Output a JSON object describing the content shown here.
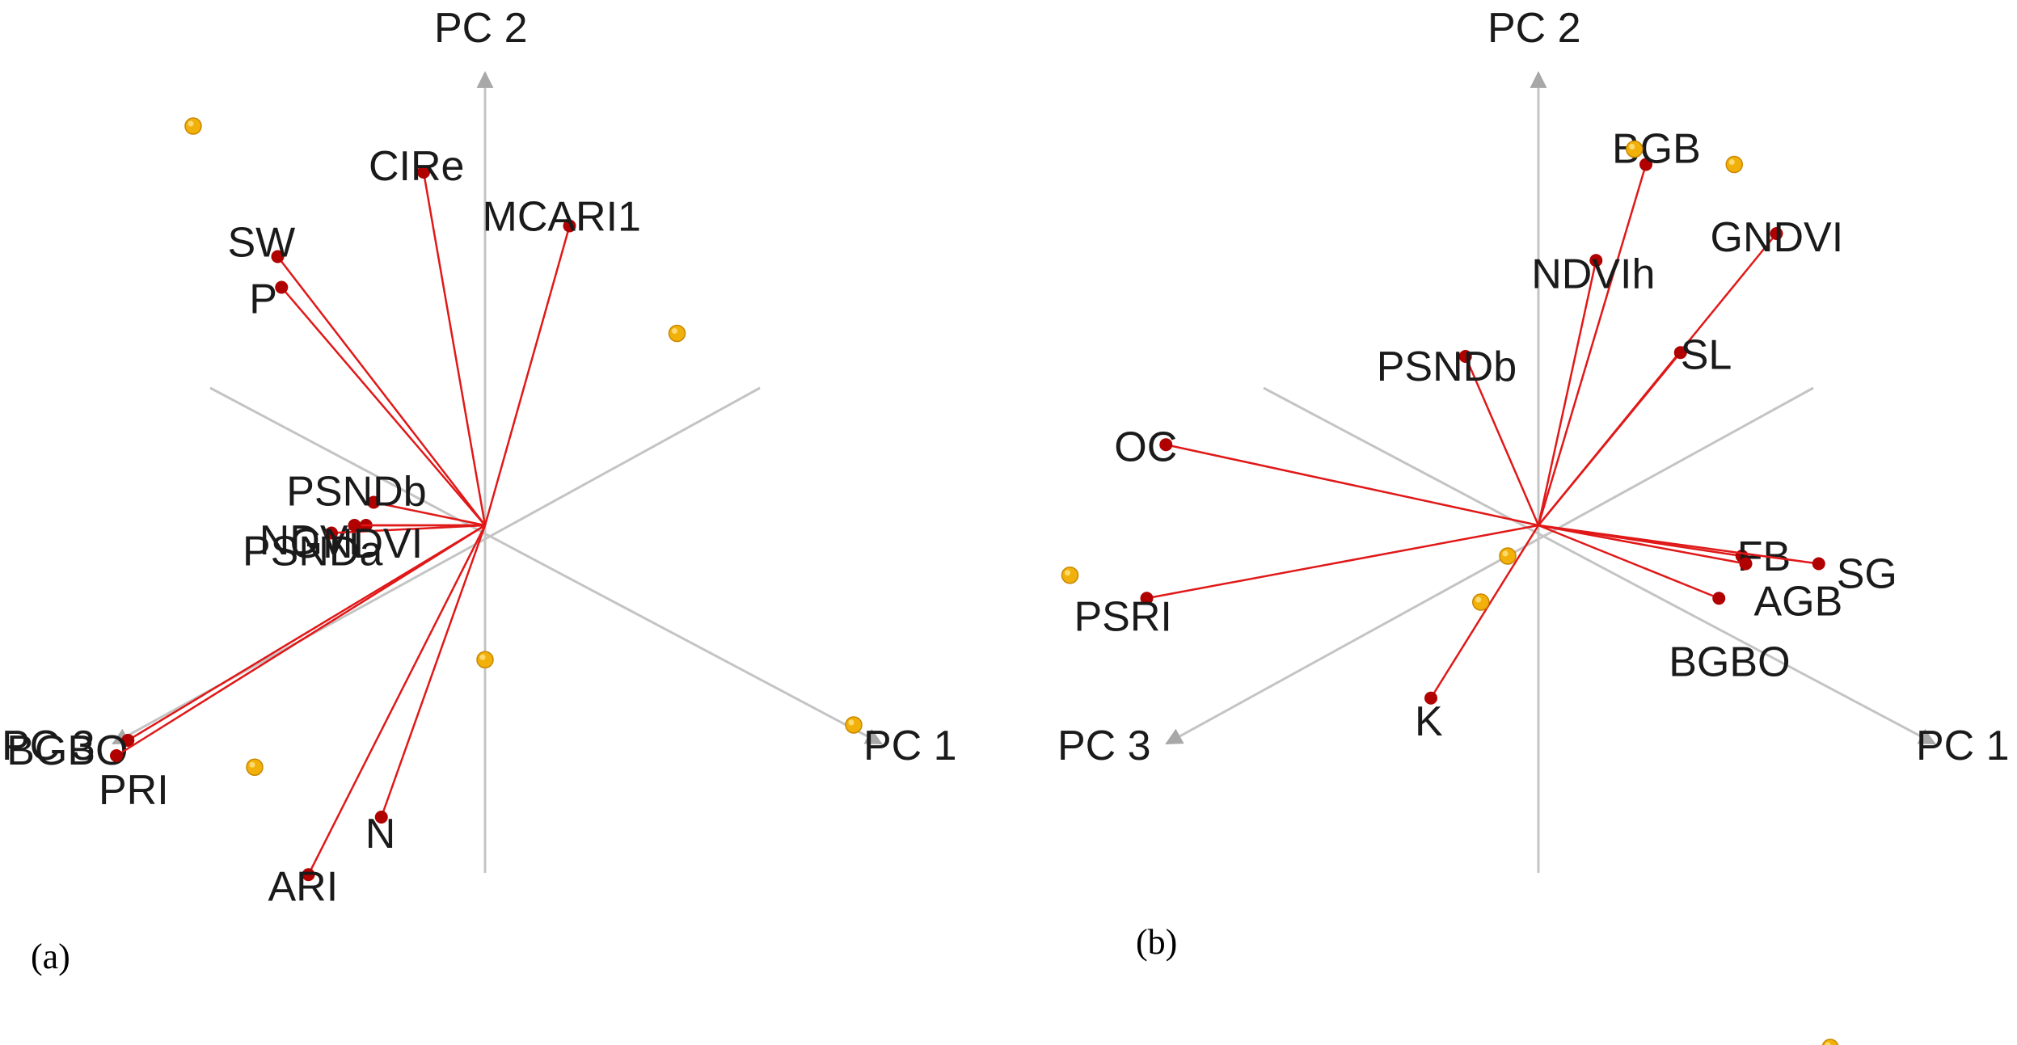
{
  "chart_data": [
    {
      "type": "scatter",
      "panel_label": "(a)",
      "axes": [
        {
          "name": "PC 2",
          "direction": [
            0,
            1
          ]
        },
        {
          "name": "PC 1",
          "direction": [
            0.9,
            -0.48
          ]
        },
        {
          "name": "PC 3",
          "direction": [
            -0.9,
            -0.48
          ]
        }
      ],
      "axis_labels": {
        "pc1": "PC 1",
        "pc2": "PC 2",
        "pc3": "PC 3"
      },
      "loadings": [
        {
          "name": "CIRe",
          "x": -0.16,
          "y": 0.92
        },
        {
          "name": "MCARI1",
          "x": 0.22,
          "y": 0.78
        },
        {
          "name": "SW",
          "x": -0.54,
          "y": 0.7
        },
        {
          "name": "P",
          "x": -0.53,
          "y": 0.62
        },
        {
          "name": "PSNDb",
          "x": -0.29,
          "y": 0.06
        },
        {
          "name": "NDVI",
          "x": -0.31,
          "y": 0.0
        },
        {
          "name": "PSNDa",
          "x": -0.4,
          "y": -0.02
        },
        {
          "name": "GNDVI",
          "x": -0.34,
          "y": 0.0
        },
        {
          "name": "BGBO",
          "x": -0.93,
          "y": -0.56
        },
        {
          "name": "PRI",
          "x": -0.96,
          "y": -0.6
        },
        {
          "name": "N",
          "x": -0.27,
          "y": -0.76
        },
        {
          "name": "ARI",
          "x": -0.46,
          "y": -0.91
        }
      ],
      "scores": [
        {
          "x": -0.76,
          "y": 1.04
        },
        {
          "x": 0.5,
          "y": 0.5
        },
        {
          "x": 0.0,
          "y": -0.35
        },
        {
          "x": -0.6,
          "y": -0.63
        },
        {
          "x": 0.96,
          "y": -0.52
        }
      ]
    },
    {
      "type": "scatter",
      "panel_label": "(b)",
      "axes": [
        {
          "name": "PC 2",
          "direction": [
            0,
            1
          ]
        },
        {
          "name": "PC 1",
          "direction": [
            0.9,
            -0.48
          ]
        },
        {
          "name": "PC 3",
          "direction": [
            -0.9,
            -0.48
          ]
        }
      ],
      "axis_labels": {
        "pc1": "PC 1",
        "pc2": "PC 2",
        "pc3": "PC 3"
      },
      "loadings": [
        {
          "name": "BGB",
          "x": 0.28,
          "y": 0.94
        },
        {
          "name": "NDVIh",
          "x": 0.15,
          "y": 0.69
        },
        {
          "name": "GNDVI",
          "x": 0.62,
          "y": 0.76
        },
        {
          "name": "SL",
          "x": 0.37,
          "y": 0.45
        },
        {
          "name": "PSNDb",
          "x": -0.19,
          "y": 0.44
        },
        {
          "name": "OC",
          "x": -0.97,
          "y": 0.21
        },
        {
          "name": "PSRI",
          "x": -1.02,
          "y": -0.19
        },
        {
          "name": "K",
          "x": -0.28,
          "y": -0.45
        },
        {
          "name": "FB",
          "x": 0.53,
          "y": -0.08
        },
        {
          "name": "SG",
          "x": 0.73,
          "y": -0.1
        },
        {
          "name": "AGB",
          "x": 0.54,
          "y": -0.1
        },
        {
          "name": "BGBO",
          "x": 0.47,
          "y": -0.19
        }
      ],
      "scores": [
        {
          "x": 0.25,
          "y": 0.98
        },
        {
          "x": 0.51,
          "y": 0.94
        },
        {
          "x": -1.22,
          "y": -0.13
        },
        {
          "x": -0.08,
          "y": -0.08
        },
        {
          "x": -0.15,
          "y": -0.2
        },
        {
          "x": 0.76,
          "y": -1.36
        }
      ]
    }
  ]
}
